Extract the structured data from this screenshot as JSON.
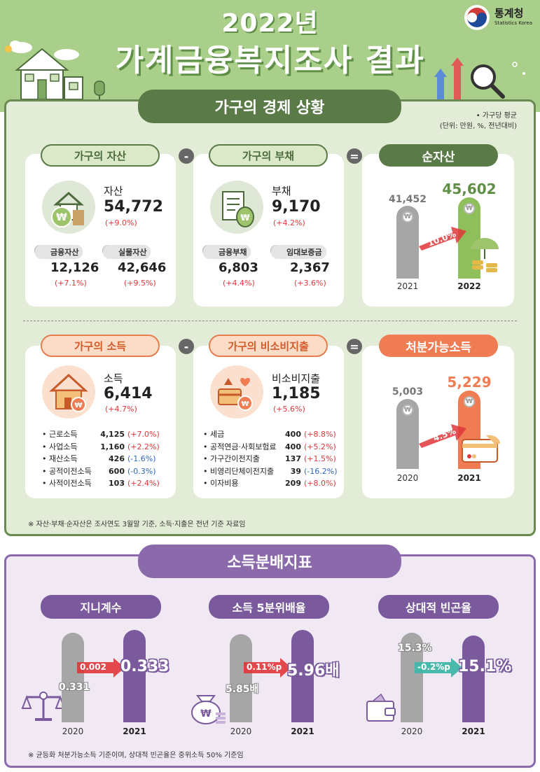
{
  "header": {
    "year_title": "2022년",
    "main_title": "가계금융복지조사 결과",
    "logo_name": "통계청",
    "logo_sub": "Statistics Korea"
  },
  "section1": {
    "banner": "가구의 경제 상황",
    "unit_line1": "• 가구당 평균",
    "unit_line2": "(단위: 만원, %, 전년대비)",
    "assets": {
      "pill": "가구의 자산",
      "label": "자산",
      "value": "54,772",
      "change": "(+9.0%)",
      "sub": [
        {
          "label": "금융자산",
          "value": "12,126",
          "change": "(+7.1%)"
        },
        {
          "label": "실물자산",
          "value": "42,646",
          "change": "(+9.5%)"
        }
      ]
    },
    "debt": {
      "pill": "가구의 부채",
      "label": "부채",
      "value": "9,170",
      "change": "(+4.2%)",
      "sub": [
        {
          "label": "금융부채",
          "value": "6,803",
          "change": "(+4.4%)"
        },
        {
          "label": "임대보증금",
          "value": "2,367",
          "change": "(+3.6%)"
        }
      ]
    },
    "net_assets": {
      "pill": "순자산",
      "years": [
        "2021",
        "2022"
      ],
      "values": [
        "41,452",
        "45,602"
      ],
      "growth": "10.0%"
    },
    "income": {
      "pill": "가구의 소득",
      "label": "소득",
      "value": "6,414",
      "change": "(+4.7%)",
      "items": [
        {
          "name": "근로소득",
          "value": "4,125",
          "change": "(+7.0%)",
          "sign": "pos"
        },
        {
          "name": "사업소득",
          "value": "1,160",
          "change": "(+2.2%)",
          "sign": "pos"
        },
        {
          "name": "재산소득",
          "value": "426",
          "change": "(-1.6%)",
          "sign": "neg"
        },
        {
          "name": "공적이전소득",
          "value": "600",
          "change": "(-0.3%)",
          "sign": "neg"
        },
        {
          "name": "사적이전소득",
          "value": "103",
          "change": "(+2.4%)",
          "sign": "pos"
        }
      ]
    },
    "nonconsumption": {
      "pill": "가구의 비소비지출",
      "label": "비소비지출",
      "value": "1,185",
      "change": "(+5.6%)",
      "items": [
        {
          "name": "세금",
          "value": "400",
          "change": "(+8.8%)",
          "sign": "pos"
        },
        {
          "name": "공적연금·사회보험료",
          "value": "400",
          "change": "(+5.2%)",
          "sign": "pos"
        },
        {
          "name": "가구간이전지출",
          "value": "137",
          "change": "(+1.5%)",
          "sign": "pos"
        },
        {
          "name": "비영리단체이전지출",
          "value": "39",
          "change": "(-16.2%)",
          "sign": "neg"
        },
        {
          "name": "이자비용",
          "value": "209",
          "change": "(+8.0%)",
          "sign": "pos"
        }
      ]
    },
    "disposable": {
      "pill": "처분가능소득",
      "years": [
        "2020",
        "2021"
      ],
      "values": [
        "5,003",
        "5,229"
      ],
      "growth": "4.5%"
    },
    "minus": "-",
    "equals": "=",
    "note": "※ 자산·부채·순자산은 조사연도 3월말 기준, 소득·지출은 전년 기준 자료임"
  },
  "section2": {
    "banner": "소득분배지표",
    "gini": {
      "pill": "지니계수",
      "years": [
        "2020",
        "2021"
      ],
      "values": [
        "0.331",
        "0.333"
      ],
      "change": "0.002"
    },
    "quintile": {
      "pill": "소득 5분위배율",
      "years": [
        "2020",
        "2021"
      ],
      "values": [
        "5.85배",
        "5.96배"
      ],
      "change": "0.11%p"
    },
    "poverty": {
      "pill": "상대적 빈곤율",
      "years": [
        "2020",
        "2021"
      ],
      "values": [
        "15.3%",
        "15.1%"
      ],
      "change": "-0.2%p"
    },
    "note": "※ 균등화 처분가능소득 기준이며, 상대적 빈곤율은 중위소득 50% 기준임"
  },
  "colors": {
    "green_dark": "#5a7a47",
    "green_bar": "#8fbf5a",
    "orange": "#ef7c52",
    "purple": "#7a5a9c",
    "gray_bar": "#a6a6a6",
    "red_text": "#e0363a",
    "blue_text": "#2f64c4"
  }
}
